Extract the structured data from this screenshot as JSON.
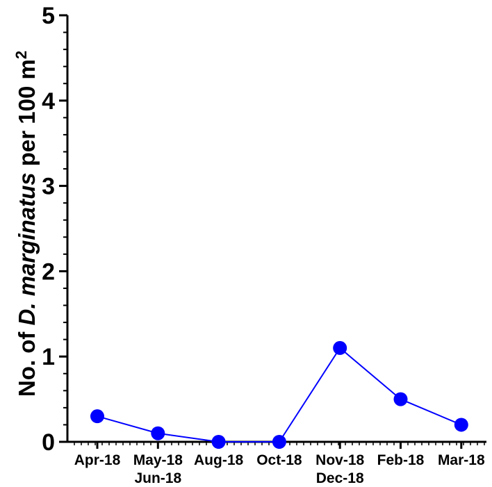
{
  "chart_data": {
    "type": "line",
    "title": "",
    "xlabel": "",
    "ylabel": {
      "pre": "No. of ",
      "italic": "D. marginatus",
      "post": " per 100 m",
      "sup": "2"
    },
    "categories": [
      [
        "Apr-18"
      ],
      [
        "May-18",
        "Jun-18"
      ],
      [
        "Aug-18"
      ],
      [
        "Oct-18"
      ],
      [
        "Nov-18",
        "Dec-18"
      ],
      [
        "Feb-18"
      ],
      [
        "Mar-18"
      ]
    ],
    "series": [
      {
        "values": [
          0.3,
          0.1,
          0.0,
          0.0,
          1.1,
          0.5,
          0.2
        ]
      }
    ],
    "ylim": [
      0,
      5
    ],
    "yticks": [
      "0",
      "1",
      "2",
      "3",
      "4",
      "5"
    ],
    "grid": false,
    "colors": {
      "series": "#0000ff",
      "axis": "#000000"
    }
  }
}
